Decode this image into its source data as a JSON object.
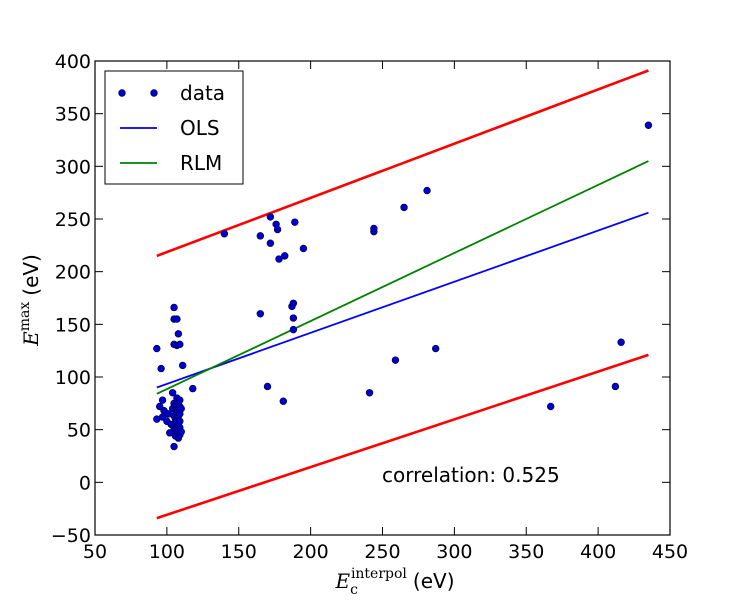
{
  "chart_data": {
    "type": "scatter",
    "xlabel": {
      "symbol": "E",
      "sub": "c",
      "sup": "interpol",
      "unit": "(eV)"
    },
    "ylabel": {
      "symbol": "E",
      "sup": "max",
      "unit": "(eV)"
    },
    "xlim": [
      50,
      450
    ],
    "ylim": [
      -50,
      400
    ],
    "xticks": [
      50,
      100,
      150,
      200,
      250,
      300,
      350,
      400,
      450
    ],
    "yticks": [
      -50,
      0,
      50,
      100,
      150,
      200,
      250,
      300,
      350,
      400
    ],
    "xtick_labels": [
      "50",
      "100",
      "150",
      "200",
      "250",
      "300",
      "350",
      "400",
      "450"
    ],
    "ytick_labels": [
      "−50",
      "0",
      "50",
      "100",
      "150",
      "200",
      "250",
      "300",
      "350",
      "400"
    ],
    "grid": false,
    "legend": {
      "location": "upper-left",
      "entries": [
        {
          "label": "data",
          "kind": "points",
          "color": "#0000cc"
        },
        {
          "label": "OLS",
          "kind": "line",
          "color": "#0000ff"
        },
        {
          "label": "RLM",
          "kind": "line",
          "color": "#008000"
        }
      ]
    },
    "annotation": "correlation: 0.525",
    "series": [
      {
        "name": "data",
        "kind": "scatter",
        "color": "#0000cc",
        "points": [
          [
            93,
            127
          ],
          [
            93,
            60
          ],
          [
            95,
            72
          ],
          [
            96,
            108
          ],
          [
            97,
            62
          ],
          [
            97,
            78
          ],
          [
            98,
            68
          ],
          [
            100,
            58
          ],
          [
            101,
            65
          ],
          [
            102,
            47
          ],
          [
            103,
            55
          ],
          [
            104,
            70
          ],
          [
            104,
            85
          ],
          [
            105,
            155
          ],
          [
            105,
            166
          ],
          [
            105,
            131
          ],
          [
            105,
            75
          ],
          [
            105,
            63
          ],
          [
            105,
            52
          ],
          [
            105,
            34
          ],
          [
            106,
            72
          ],
          [
            106,
            68
          ],
          [
            106,
            60
          ],
          [
            106,
            50
          ],
          [
            106,
            44
          ],
          [
            107,
            155
          ],
          [
            107,
            130
          ],
          [
            107,
            80
          ],
          [
            107,
            73
          ],
          [
            107,
            66
          ],
          [
            107,
            58
          ],
          [
            107,
            49
          ],
          [
            108,
            141
          ],
          [
            108,
            75
          ],
          [
            108,
            70
          ],
          [
            108,
            63
          ],
          [
            108,
            55
          ],
          [
            108,
            48
          ],
          [
            108,
            42
          ],
          [
            109,
            131
          ],
          [
            109,
            78
          ],
          [
            109,
            72
          ],
          [
            109,
            65
          ],
          [
            109,
            58
          ],
          [
            109,
            52
          ],
          [
            109,
            45
          ],
          [
            110,
            70
          ],
          [
            110,
            48
          ],
          [
            111,
            111
          ],
          [
            118,
            89
          ],
          [
            140,
            236
          ],
          [
            165,
            234
          ],
          [
            165,
            160
          ],
          [
            170,
            91
          ],
          [
            172,
            252
          ],
          [
            172,
            227
          ],
          [
            176,
            245
          ],
          [
            177,
            240
          ],
          [
            178,
            212
          ],
          [
            181,
            77
          ],
          [
            182,
            215
          ],
          [
            187,
            167
          ],
          [
            188,
            145
          ],
          [
            188,
            156
          ],
          [
            188,
            170
          ],
          [
            189,
            247
          ],
          [
            195,
            222
          ],
          [
            241,
            85
          ],
          [
            244,
            238
          ],
          [
            244,
            241
          ],
          [
            259,
            116
          ],
          [
            265,
            261
          ],
          [
            281,
            277
          ],
          [
            287,
            127
          ],
          [
            367,
            72
          ],
          [
            412,
            91
          ],
          [
            416,
            133
          ],
          [
            435,
            339
          ]
        ]
      },
      {
        "name": "OLS",
        "kind": "line",
        "color": "#0000ff",
        "x": [
          93,
          435
        ],
        "y": [
          90,
          256
        ]
      },
      {
        "name": "RLM",
        "kind": "line",
        "color": "#008000",
        "x": [
          93,
          435
        ],
        "y": [
          84,
          305
        ]
      },
      {
        "name": "upper bound",
        "kind": "line",
        "color": "#ff0000",
        "x": [
          93,
          435
        ],
        "y": [
          215,
          391
        ]
      },
      {
        "name": "lower bound",
        "kind": "line",
        "color": "#ff0000",
        "x": [
          93,
          435
        ],
        "y": [
          -34,
          121
        ]
      }
    ]
  }
}
